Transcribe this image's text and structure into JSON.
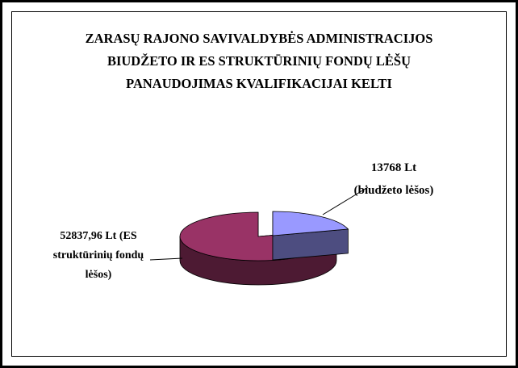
{
  "chart_data": {
    "type": "pie",
    "title": "ZARASŲ RAJONO SAVIVALDYBĖS ADMINISTRACIJOS BIUDŽETO IR ES STRUKTŪRINIŲ FONDŲ LĖŠŲ PANAUDOJIMAS KVALIFIKACIJAI KELTI",
    "categories": [
      "biudžeto lėšos",
      "ES struktūrinių fondų lėšos"
    ],
    "values": [
      13768,
      52837.96
    ],
    "value_labels": [
      "13768 Lt (biudžeto lėšos)",
      "52837,96 Lt (ES struktūrinių fondų lėšos)"
    ],
    "colors": [
      "#9999ff",
      "#993366"
    ]
  }
}
